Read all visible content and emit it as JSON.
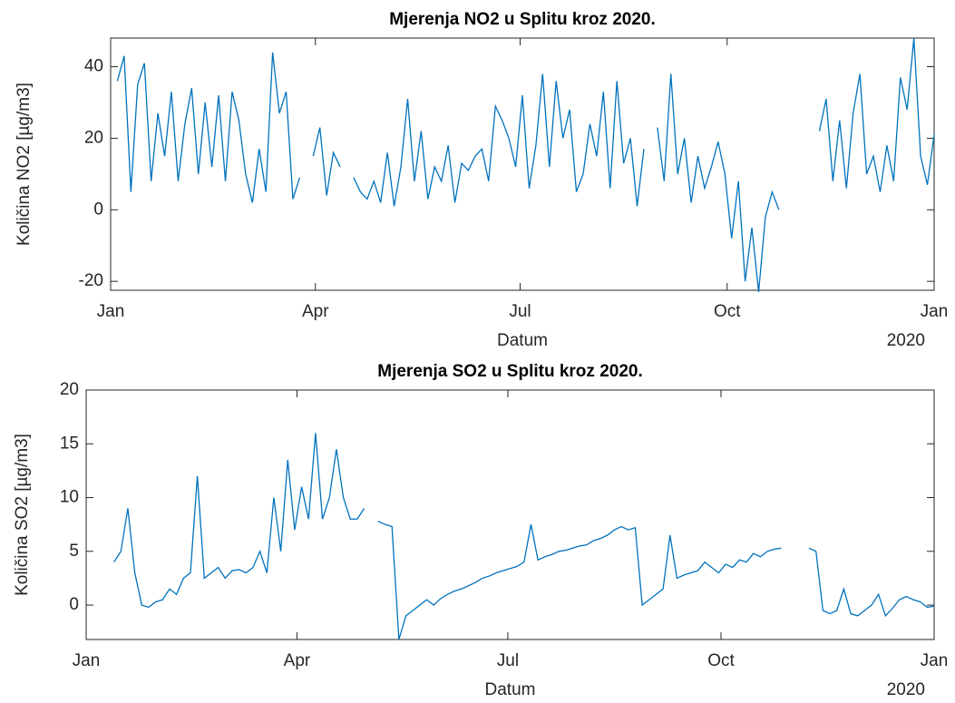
{
  "chart_data": [
    {
      "type": "line",
      "title": "Mjerenja NO2 u Splitu kroz 2020.",
      "xlabel": "Datum",
      "ylabel": "Količina NO2 [µg/m3]",
      "x_secondary_label": "2020",
      "xlim": [
        0,
        366
      ],
      "xticks": [
        {
          "value": 0,
          "label": "Jan"
        },
        {
          "value": 91,
          "label": "Apr"
        },
        {
          "value": 182,
          "label": "Jul"
        },
        {
          "value": 274,
          "label": "Oct"
        },
        {
          "value": 366,
          "label": "Jan"
        }
      ],
      "ylim": [
        -22.5,
        48
      ],
      "yticks": [
        -20,
        0,
        20,
        40
      ],
      "grid": false,
      "x": [
        3,
        6,
        9,
        12,
        15,
        18,
        21,
        24,
        27,
        30,
        33,
        36,
        39,
        42,
        45,
        48,
        51,
        54,
        57,
        60,
        63,
        66,
        69,
        72,
        75,
        78,
        81,
        84,
        87,
        90,
        93,
        96,
        99,
        102,
        105,
        108,
        111,
        114,
        117,
        120,
        123,
        126,
        129,
        132,
        135,
        138,
        141,
        144,
        147,
        150,
        153,
        156,
        159,
        162,
        165,
        168,
        171,
        174,
        177,
        180,
        183,
        186,
        189,
        192,
        195,
        198,
        201,
        204,
        207,
        210,
        213,
        216,
        219,
        222,
        225,
        228,
        231,
        234,
        237,
        240,
        243,
        246,
        249,
        252,
        255,
        258,
        261,
        264,
        267,
        270,
        273,
        276,
        279,
        282,
        285,
        288,
        291,
        294,
        297,
        300,
        303,
        306,
        309,
        312,
        315,
        318,
        321,
        324,
        327,
        330,
        333,
        336,
        339,
        342,
        345,
        348,
        351,
        354,
        357,
        360,
        363,
        366
      ],
      "series": [
        {
          "name": "NO2",
          "color": "#0072BD",
          "values": [
            36,
            43,
            5,
            35,
            41,
            8,
            27,
            15,
            33,
            8,
            24,
            34,
            10,
            30,
            12,
            32,
            8,
            33,
            25,
            10,
            2,
            17,
            5,
            44,
            27,
            33,
            3,
            9,
            null,
            15,
            23,
            4,
            16,
            12,
            null,
            9,
            5,
            3,
            8,
            2,
            16,
            1,
            12,
            31,
            8,
            22,
            3,
            12,
            8,
            18,
            2,
            13,
            11,
            15,
            17,
            8,
            29,
            25,
            20,
            12,
            32,
            6,
            18,
            38,
            12,
            36,
            20,
            28,
            5,
            10,
            24,
            15,
            33,
            6,
            36,
            13,
            20,
            1,
            17,
            null,
            23,
            8,
            38,
            10,
            20,
            2,
            15,
            6,
            12,
            19,
            10,
            -8,
            8,
            -20,
            -5,
            -23,
            -2,
            5,
            0,
            null,
            null,
            null,
            null,
            null,
            22,
            31,
            8,
            25,
            6,
            27,
            38,
            10,
            15,
            5,
            18,
            8,
            37,
            28,
            48,
            15,
            7,
            21
          ]
        }
      ]
    },
    {
      "type": "line",
      "title": "Mjerenja SO2 u Splitu kroz 2020.",
      "xlabel": "Datum",
      "ylabel": "Količina SO2 [µg/m3]",
      "x_secondary_label": "2020",
      "xlim": [
        0,
        366
      ],
      "xticks": [
        {
          "value": 0,
          "label": "Jan"
        },
        {
          "value": 91,
          "label": "Apr"
        },
        {
          "value": 182,
          "label": "Jul"
        },
        {
          "value": 274,
          "label": "Oct"
        },
        {
          "value": 366,
          "label": "Jan"
        }
      ],
      "ylim": [
        -3.2,
        20
      ],
      "yticks": [
        0,
        5,
        10,
        15,
        20
      ],
      "grid": false,
      "x": [
        3,
        6,
        9,
        12,
        15,
        18,
        21,
        24,
        27,
        30,
        33,
        36,
        39,
        42,
        45,
        48,
        51,
        54,
        57,
        60,
        63,
        66,
        69,
        72,
        75,
        78,
        81,
        84,
        87,
        90,
        93,
        96,
        99,
        102,
        105,
        108,
        111,
        114,
        117,
        120,
        123,
        126,
        129,
        132,
        135,
        138,
        141,
        144,
        147,
        150,
        153,
        156,
        159,
        162,
        165,
        168,
        171,
        174,
        177,
        180,
        183,
        186,
        189,
        192,
        195,
        198,
        201,
        204,
        207,
        210,
        213,
        216,
        219,
        222,
        225,
        228,
        231,
        234,
        237,
        240,
        243,
        246,
        249,
        252,
        255,
        258,
        261,
        264,
        267,
        270,
        273,
        276,
        279,
        282,
        285,
        288,
        291,
        294,
        297,
        300,
        303,
        306,
        309,
        312,
        315,
        318,
        321,
        324,
        327,
        330,
        333,
        336,
        339,
        342,
        345,
        348,
        351,
        354,
        357,
        360,
        363,
        366
      ],
      "series": [
        {
          "name": "SO2",
          "color": "#0072BD",
          "values": [
            null,
            null,
            null,
            4,
            5,
            9,
            3,
            0,
            -0.2,
            0.3,
            0.5,
            1.5,
            1,
            2.5,
            3,
            12,
            2.5,
            3,
            3.5,
            2.5,
            3.2,
            3.3,
            3,
            3.5,
            5,
            3,
            10,
            5,
            13.5,
            7,
            11,
            8,
            16,
            8,
            10,
            14.5,
            10,
            8,
            8,
            9,
            null,
            7.8,
            7.5,
            7.3,
            -3.2,
            -1,
            -0.5,
            0,
            0.5,
            0,
            0.6,
            1,
            1.3,
            1.5,
            1.8,
            2.1,
            2.5,
            2.7,
            3,
            3.2,
            3.4,
            3.6,
            4,
            7.5,
            4.2,
            4.5,
            4.7,
            5,
            5.1,
            5.3,
            5.5,
            5.6,
            6,
            6.2,
            6.5,
            7,
            7.3,
            7,
            7.2,
            0,
            0.5,
            1,
            1.5,
            6.5,
            2.5,
            2.8,
            3,
            3.2,
            4,
            3.5,
            3,
            3.8,
            3.5,
            4.2,
            4,
            4.8,
            4.5,
            5,
            5.2,
            5.3,
            null,
            null,
            null,
            5.3,
            5,
            -0.5,
            -0.8,
            -0.5,
            1.5,
            -0.8,
            -1,
            -0.5,
            0,
            1,
            -1,
            -0.3,
            0.5,
            0.8,
            0.5,
            0.3,
            -0.2,
            -0.1
          ]
        }
      ]
    }
  ]
}
